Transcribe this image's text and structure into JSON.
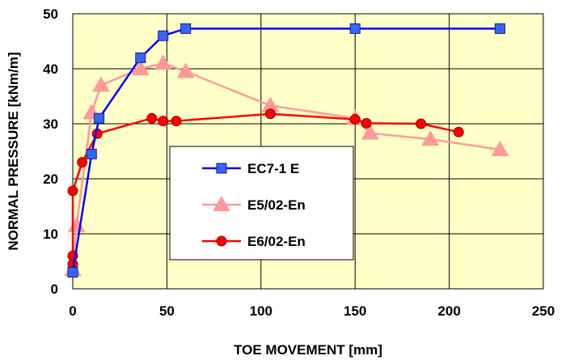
{
  "chart_data": {
    "type": "line",
    "title": "",
    "xlabel": "TOE MOVEMENT [mm]",
    "ylabel": "NORMAL PRESSURE [kNm/m]",
    "xlim": [
      0,
      250
    ],
    "ylim": [
      0,
      50
    ],
    "x_ticks": [
      "0",
      "50",
      "100",
      "150",
      "200",
      "250"
    ],
    "y_ticks": [
      "0",
      "10",
      "20",
      "30",
      "40",
      "50"
    ],
    "grid": true,
    "plot_background": "#FFFFC8",
    "legend_position": "center",
    "series": [
      {
        "name": "EC7-1 E",
        "color": "#0000FF",
        "marker": "square",
        "marker_fill": "#3366FF",
        "x": [
          0,
          10,
          14,
          36,
          48,
          60,
          150,
          227
        ],
        "y": [
          3,
          24.5,
          31,
          42,
          46,
          47.3,
          47.3,
          47.3
        ]
      },
      {
        "name": "E5/02-En",
        "color": "#FF9999",
        "marker": "triangle",
        "marker_fill": "#FF9999",
        "x": [
          0,
          2,
          10,
          15,
          36,
          48,
          60,
          105,
          150,
          158,
          190,
          227
        ],
        "y": [
          3.5,
          11.5,
          32,
          37,
          40,
          41,
          39.5,
          33.3,
          31,
          28.3,
          27.2,
          25.3
        ]
      },
      {
        "name": "E6/02-En",
        "color": "#FF0000",
        "marker": "circle",
        "marker_fill": "#FF0000",
        "x": [
          0,
          0,
          0,
          0,
          5,
          13,
          42,
          48,
          55,
          105,
          150,
          156,
          185,
          205
        ],
        "y": [
          3.5,
          4.5,
          6,
          17.8,
          23,
          28.2,
          31,
          30.5,
          30.5,
          31.8,
          30.8,
          30.1,
          30,
          28.5
        ]
      }
    ]
  }
}
